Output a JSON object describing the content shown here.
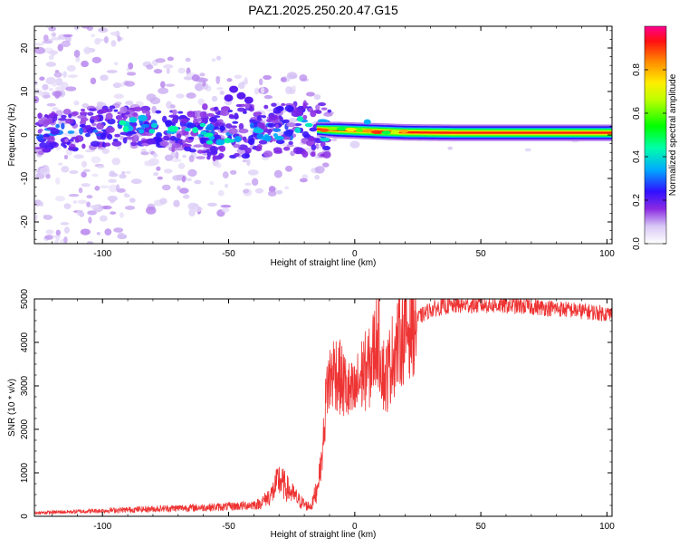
{
  "figure": {
    "title": "PAZ1.2025.250.20.47.G15"
  },
  "chart_data": [
    {
      "type": "heatmap",
      "title": "PAZ1.2025.250.20.47.G15",
      "xlabel": "Height of straight line (km)",
      "ylabel": "Frequency (Hz)",
      "xlim": [
        -127,
        102
      ],
      "ylim": [
        -25,
        25
      ],
      "xticks": [
        -100,
        -50,
        0,
        50,
        100
      ],
      "yticks": [
        -20,
        -10,
        0,
        10,
        20
      ],
      "colorbar": {
        "label": "Normalized spectral amplitude",
        "range": [
          0,
          1
        ],
        "ticks": [
          "0.0",
          "0.2",
          "0.4",
          "0.6",
          "0.8"
        ],
        "tick_values": [
          0,
          0.2,
          0.4,
          0.6,
          0.8
        ]
      },
      "ridge": {
        "x": [
          -127,
          -100,
          -80,
          -60,
          -40,
          -20,
          -10,
          0,
          10,
          20,
          40,
          60,
          80,
          102
        ],
        "freq": [
          0,
          2,
          1.5,
          0.5,
          1,
          1.5,
          1.2,
          1,
          0.8,
          0.6,
          0.5,
          0.5,
          0.5,
          0.5
        ],
        "amplitude": [
          0.1,
          0.25,
          0.3,
          0.3,
          0.35,
          0.35,
          0.55,
          0.7,
          0.8,
          0.85,
          0.9,
          0.95,
          0.95,
          0.95
        ]
      }
    },
    {
      "type": "line",
      "xlabel": "Height of straight line (km)",
      "ylabel": "SNR (10 * v/v)",
      "xlim": [
        -127,
        102
      ],
      "ylim": [
        0,
        5000
      ],
      "xticks": [
        -100,
        -50,
        0,
        50,
        100
      ],
      "yticks": [
        0,
        1000,
        2000,
        3000,
        4000,
        5000
      ],
      "series": [
        {
          "name": "SNR",
          "color": "#ee3333",
          "x": [
            -127,
            -115,
            -100,
            -85,
            -70,
            -55,
            -45,
            -38,
            -33,
            -30,
            -27,
            -22,
            -19,
            -17,
            -15,
            -13,
            -11,
            -8,
            -5,
            -2,
            0,
            3,
            6,
            9,
            12,
            15,
            18,
            22,
            26,
            30,
            35,
            40,
            50,
            60,
            70,
            80,
            90,
            102
          ],
          "values": [
            80,
            100,
            130,
            160,
            190,
            210,
            240,
            280,
            500,
            850,
            650,
            360,
            240,
            250,
            650,
            1300,
            3000,
            3400,
            3100,
            2800,
            2800,
            3300,
            3400,
            4200,
            3100,
            3700,
            4100,
            4400,
            4600,
            4750,
            4820,
            4850,
            4860,
            4850,
            4820,
            4780,
            4720,
            4650
          ]
        }
      ]
    }
  ]
}
